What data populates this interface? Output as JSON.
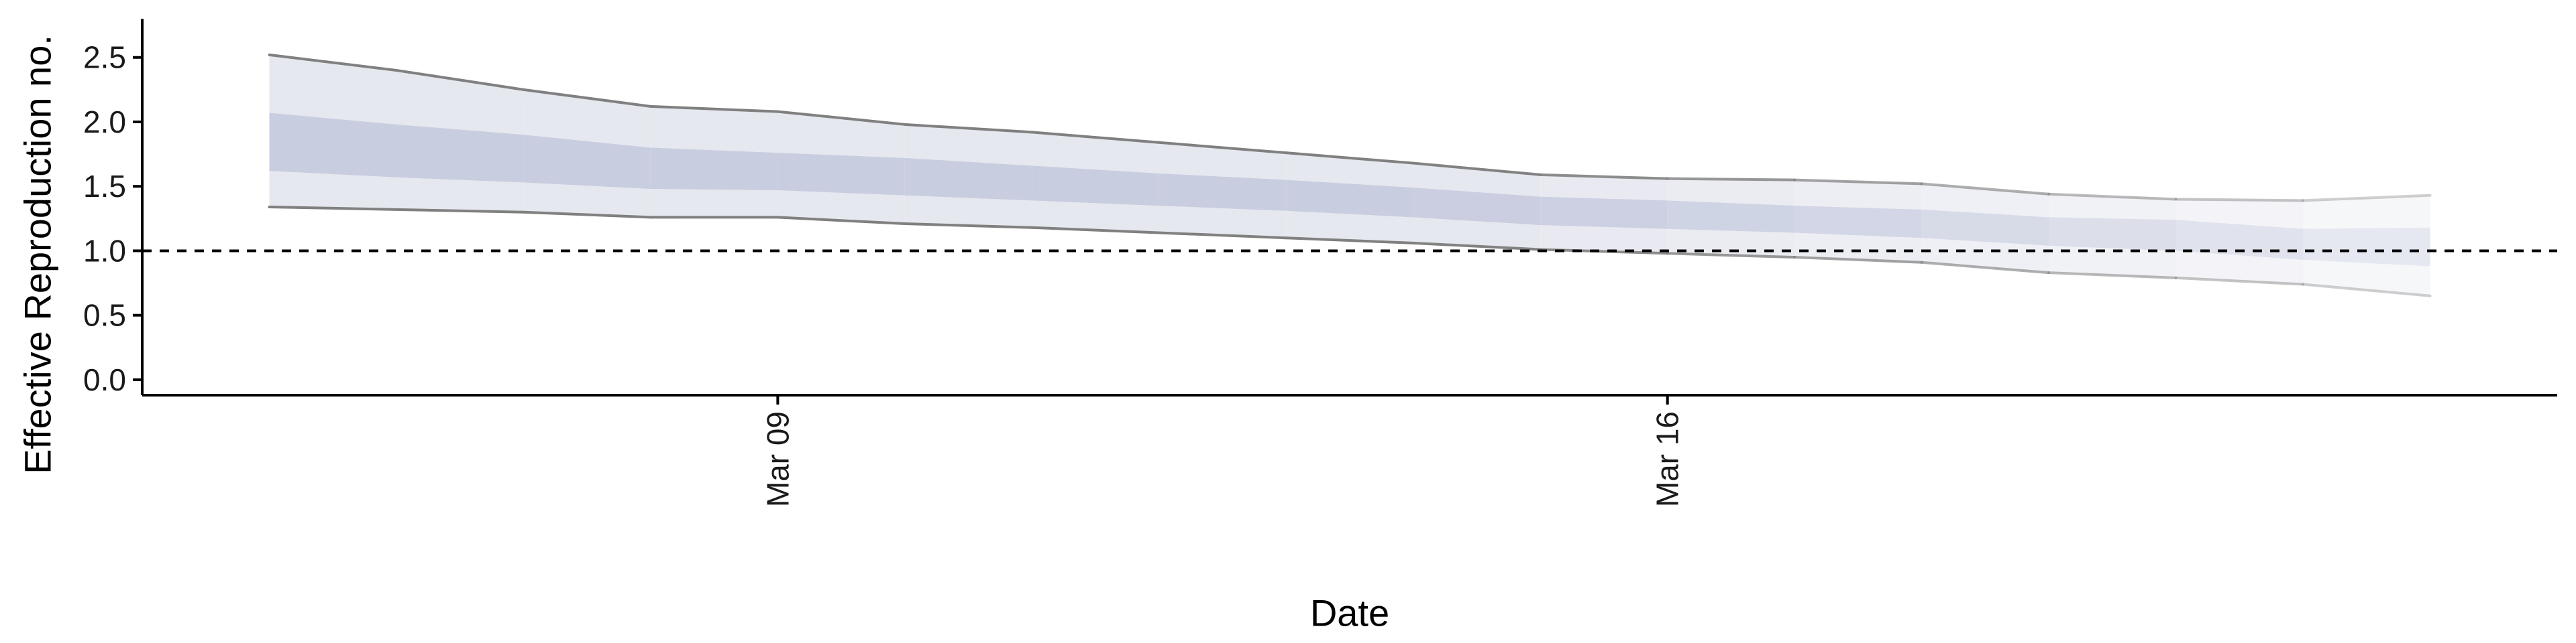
{
  "chart_data": {
    "type": "area",
    "title": "",
    "xlabel": "Date",
    "ylabel": "Effective Reproduction no.",
    "x": [
      "2020-03-04",
      "2020-03-05",
      "2020-03-06",
      "2020-03-07",
      "2020-03-08",
      "2020-03-09",
      "2020-03-10",
      "2020-03-11",
      "2020-03-12",
      "2020-03-13",
      "2020-03-14",
      "2020-03-15",
      "2020-03-16",
      "2020-03-17",
      "2020-03-18",
      "2020-03-19",
      "2020-03-20",
      "2020-03-21",
      "2020-03-22",
      "2020-03-23"
    ],
    "x_ticks": [
      {
        "date": "2020-03-09",
        "label": "Mar 09"
      },
      {
        "date": "2020-03-16",
        "label": "Mar 16"
      }
    ],
    "ylim": [
      -0.12,
      2.8
    ],
    "y_ticks": [
      0.0,
      0.5,
      1.0,
      1.5,
      2.0,
      2.5
    ],
    "y_tick_labels": [
      "0.0",
      "0.5",
      "1.0",
      "1.5",
      "2.0",
      "2.5"
    ],
    "reference_line": {
      "y": 1.0,
      "style": "dashed"
    },
    "series": [
      {
        "outer_upper": [
          2.52,
          2.4,
          2.25,
          2.12,
          2.08,
          1.98,
          1.92,
          1.84,
          1.76,
          1.68,
          1.59,
          1.56,
          1.55,
          1.52,
          1.44,
          1.4,
          1.39,
          1.43
        ],
        "outer_lower": [
          1.34,
          1.32,
          1.3,
          1.26,
          1.26,
          1.21,
          1.18,
          1.14,
          1.1,
          1.06,
          1.01,
          0.98,
          0.95,
          0.91,
          0.83,
          0.79,
          0.74,
          0.65
        ],
        "inner_upper": [
          2.07,
          1.98,
          1.9,
          1.8,
          1.76,
          1.72,
          1.66,
          1.6,
          1.55,
          1.49,
          1.42,
          1.39,
          1.35,
          1.32,
          1.26,
          1.24,
          1.17,
          1.18
        ],
        "inner_lower": [
          1.62,
          1.57,
          1.53,
          1.48,
          1.47,
          1.43,
          1.39,
          1.35,
          1.31,
          1.26,
          1.2,
          1.17,
          1.14,
          1.1,
          1.04,
          1.0,
          0.93,
          0.88
        ],
        "x_index": [
          1,
          2,
          3,
          4,
          5,
          6,
          7,
          8,
          9,
          10,
          11,
          12,
          13,
          14,
          15,
          16,
          17,
          18
        ]
      }
    ],
    "colors": {
      "inner_band": "#c9cde0",
      "outer_band": "#e6e8ef",
      "outline": "#808080",
      "reference_line": "#000000",
      "axis": "#000000"
    }
  }
}
